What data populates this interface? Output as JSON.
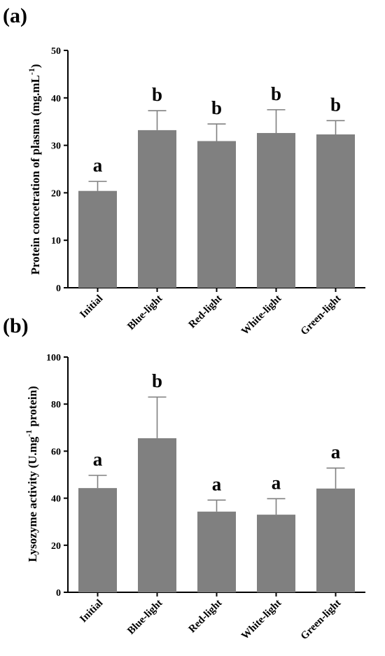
{
  "chart_data": [
    {
      "type": "bar",
      "panel_label": "(a)",
      "ylabel": "Protein concetration of plasma (mg.mL",
      "ylabel_superscript": "-1",
      "ylabel_suffix": ")",
      "xlabel": "",
      "categories": [
        "Initial",
        "Blue-light",
        "Red-light",
        "White-light",
        "Green-light"
      ],
      "values": [
        20.4,
        33.2,
        30.9,
        32.6,
        32.3
      ],
      "errors": [
        2.0,
        4.1,
        3.6,
        4.9,
        2.9
      ],
      "significance": [
        "a",
        "b",
        "b",
        "b",
        "b"
      ],
      "ylim": [
        0,
        50
      ],
      "yticks": [
        0,
        10,
        20,
        30,
        40,
        50
      ],
      "grid": false,
      "bar_color": "#808080"
    },
    {
      "type": "bar",
      "panel_label": "(b)",
      "ylabel": "Lysozyme activity (U.mg",
      "ylabel_superscript": "-1",
      "ylabel_suffix": " protein)",
      "xlabel": "",
      "categories": [
        "Initial",
        "Blue-light",
        "Red-light",
        "White-light",
        "Green-light"
      ],
      "values": [
        44.3,
        65.5,
        34.3,
        33.0,
        44.1
      ],
      "errors": [
        5.4,
        17.5,
        4.9,
        6.8,
        8.7
      ],
      "significance": [
        "a",
        "b",
        "a",
        "a",
        "a"
      ],
      "ylim": [
        0,
        100
      ],
      "yticks": [
        0,
        20,
        40,
        60,
        80,
        100
      ],
      "grid": false,
      "bar_color": "#808080"
    }
  ]
}
